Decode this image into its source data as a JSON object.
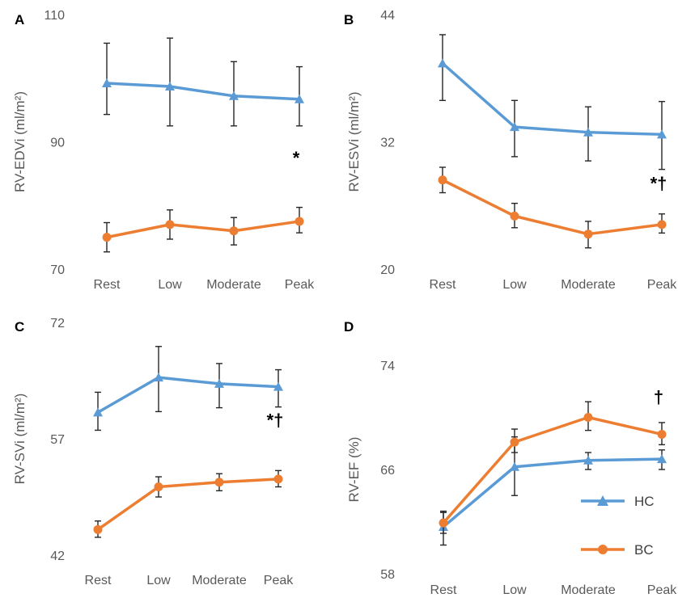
{
  "colors": {
    "HC": "#5b9bd5",
    "BC": "#ed7d31"
  },
  "legend": [
    {
      "key": "HC",
      "label": "HC",
      "marker": "triangle"
    },
    {
      "key": "BC",
      "label": "BC",
      "marker": "circle"
    }
  ],
  "chart_data": [
    {
      "id": "A",
      "type": "line",
      "panel_label": "A",
      "ylabel": "RV-EDVi (ml/m²)",
      "categories": [
        "Rest",
        "Low",
        "Moderate",
        "Peak"
      ],
      "ylim": [
        70,
        110
      ],
      "yticks": [
        70,
        90,
        110
      ],
      "series": [
        {
          "key": "HC",
          "values": [
            99.2,
            98.7,
            97.2,
            96.7
          ],
          "err_low": [
            94.3,
            92.5,
            92.5,
            92.5
          ],
          "err_high": [
            105.5,
            106.3,
            102.6,
            101.8
          ]
        },
        {
          "key": "BC",
          "values": [
            75.0,
            77.0,
            76.0,
            77.5
          ],
          "err_low": [
            72.7,
            74.7,
            73.8,
            75.7
          ],
          "err_high": [
            77.3,
            79.3,
            78.1,
            79.7
          ]
        }
      ],
      "annotations": [
        {
          "text": "*",
          "category": "Peak",
          "y": 86.5
        }
      ]
    },
    {
      "id": "B",
      "type": "line",
      "panel_label": "B",
      "ylabel": "RV-ESVi (ml/m²)",
      "categories": [
        "Rest",
        "Low",
        "Moderate",
        "Peak"
      ],
      "ylim": [
        20,
        44
      ],
      "yticks": [
        20,
        32,
        44
      ],
      "series": [
        {
          "key": "HC",
          "values": [
            39.4,
            33.4,
            32.9,
            32.7
          ],
          "err_low": [
            35.9,
            30.6,
            30.2,
            29.4
          ],
          "err_high": [
            42.1,
            35.9,
            35.3,
            35.8
          ]
        },
        {
          "key": "BC",
          "values": [
            28.4,
            25.0,
            23.3,
            24.2
          ],
          "err_low": [
            27.2,
            23.9,
            22.0,
            23.4
          ],
          "err_high": [
            29.6,
            26.2,
            24.5,
            25.2
          ]
        }
      ],
      "annotations": [
        {
          "text": "*†",
          "category": "Peak",
          "y": 27.5
        }
      ]
    },
    {
      "id": "C",
      "type": "line",
      "panel_label": "C",
      "ylabel": "RV-SVi (ml/m²)",
      "categories": [
        "Rest",
        "Low",
        "Moderate",
        "Peak"
      ],
      "ylim": [
        42,
        72
      ],
      "yticks": [
        42,
        57,
        72
      ],
      "series": [
        {
          "key": "HC",
          "values": [
            60.4,
            64.9,
            64.1,
            63.7
          ],
          "err_low": [
            58.1,
            60.5,
            61.0,
            61.1
          ],
          "err_high": [
            63.0,
            68.9,
            66.7,
            65.9
          ]
        },
        {
          "key": "BC",
          "values": [
            45.3,
            50.8,
            51.4,
            51.8
          ],
          "err_low": [
            44.3,
            49.5,
            50.3,
            50.8
          ],
          "err_high": [
            46.4,
            52.1,
            52.5,
            52.9
          ]
        }
      ],
      "annotations": [
        {
          "text": "*†",
          "category": "Peak",
          "y": 58.6
        }
      ]
    },
    {
      "id": "D",
      "type": "line",
      "panel_label": "D",
      "ylabel": "RV-EF (%)",
      "categories": [
        "Rest",
        "Low",
        "Moderate",
        "Peak"
      ],
      "ylim": [
        58,
        74
      ],
      "yticks": [
        58,
        66,
        74
      ],
      "series": [
        {
          "key": "HC",
          "values": [
            61.6,
            66.2,
            66.7,
            66.8
          ],
          "err_low": [
            60.2,
            64.0,
            66.0,
            66.0
          ],
          "err_high": [
            62.8,
            68.5,
            67.3,
            67.5
          ]
        },
        {
          "key": "BC",
          "values": [
            61.9,
            68.1,
            70.0,
            68.7
          ],
          "err_low": [
            61.1,
            67.3,
            69.0,
            67.9
          ],
          "err_high": [
            62.7,
            69.1,
            71.2,
            69.6
          ]
        }
      ],
      "annotations": [
        {
          "text": "†",
          "category": "Peak",
          "y": 71.1
        }
      ]
    }
  ]
}
